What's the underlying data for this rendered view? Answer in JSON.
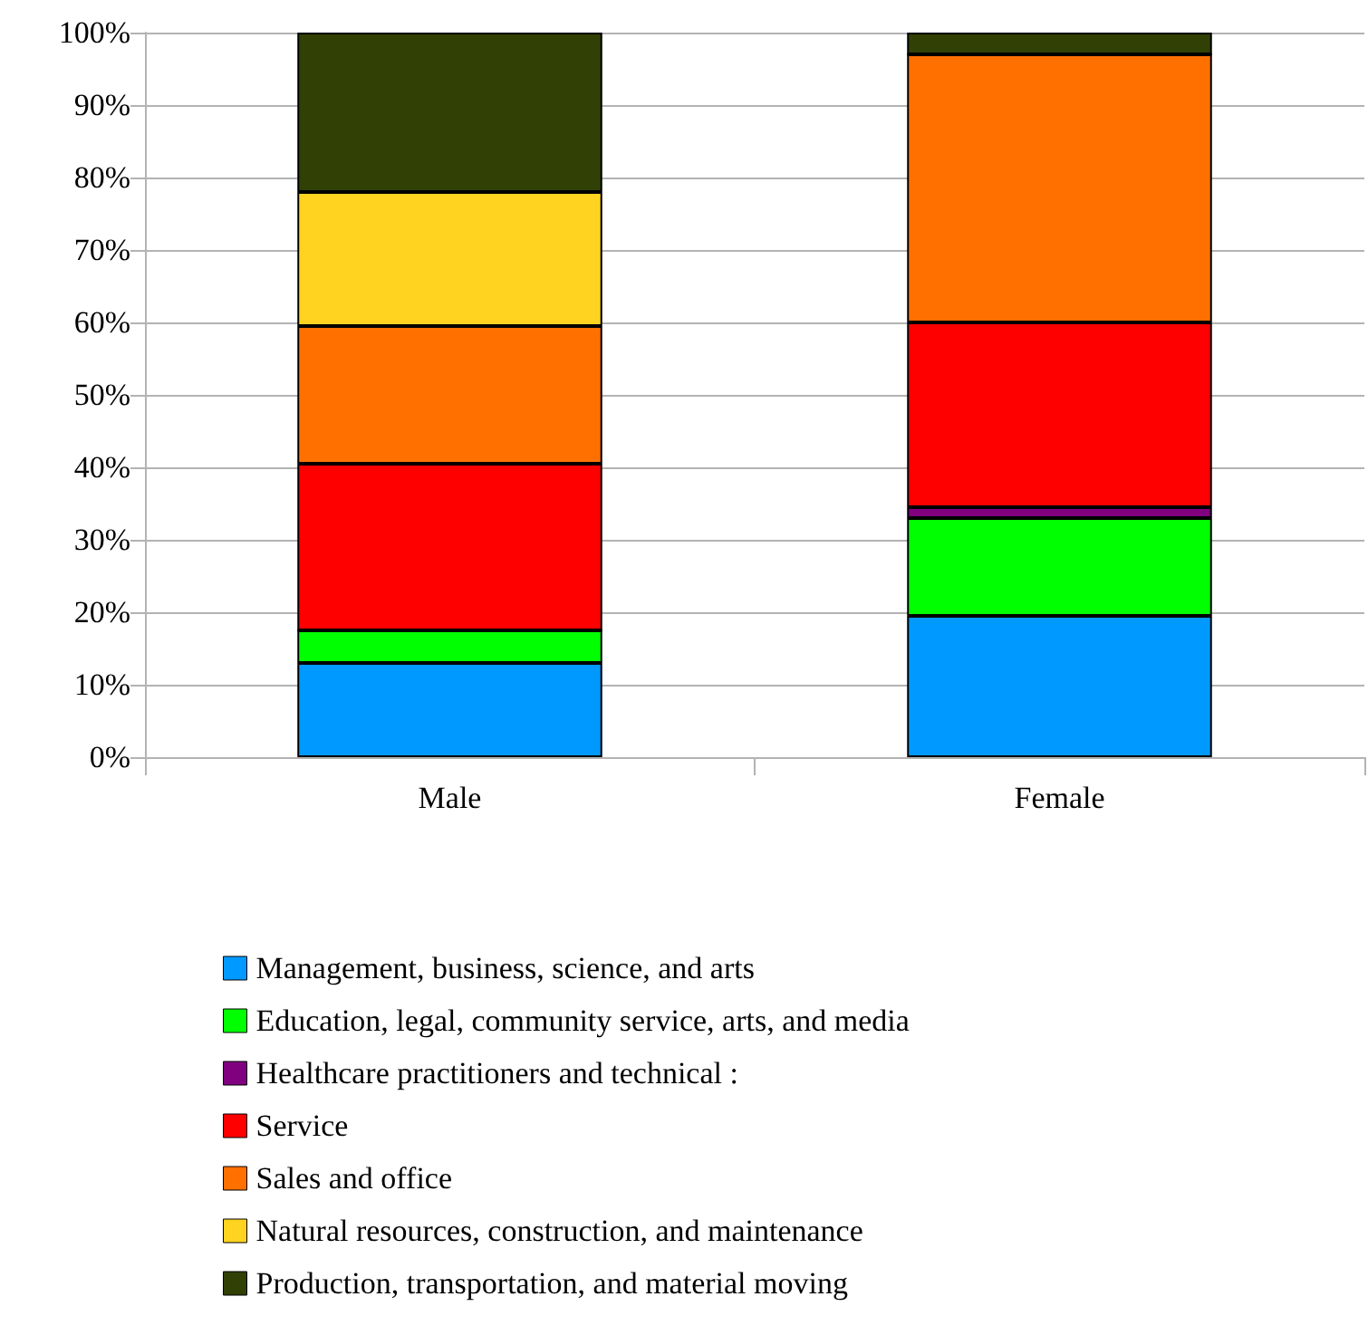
{
  "chart_data": {
    "type": "bar",
    "stacked": true,
    "categories": [
      "Male",
      "Female"
    ],
    "series": [
      {
        "name": "Management, business, science, and arts",
        "color": "#0099ff",
        "values": [
          13,
          19.5
        ]
      },
      {
        "name": "Education, legal, community service, arts, and media",
        "color": "#00ff00",
        "values": [
          4.5,
          13.5
        ]
      },
      {
        "name": "Healthcare practitioners and technical :",
        "color": "#800080",
        "values": [
          0,
          1.5
        ]
      },
      {
        "name": "Service",
        "color": "#ff0000",
        "values": [
          23,
          25.5
        ]
      },
      {
        "name": "Sales and office",
        "color": "#ff7000",
        "values": [
          19,
          37
        ]
      },
      {
        "name": "Natural resources, construction, and maintenance",
        "color": "#ffd320",
        "values": [
          18.5,
          0
        ]
      },
      {
        "name": "Production, transportation, and material moving",
        "color": "#314004",
        "values": [
          22,
          3
        ]
      }
    ],
    "ylim": [
      0,
      100
    ],
    "yticks": [
      {
        "value": 0,
        "label": "0%"
      },
      {
        "value": 10,
        "label": "10%"
      },
      {
        "value": 20,
        "label": "20%"
      },
      {
        "value": 30,
        "label": "30%"
      },
      {
        "value": 40,
        "label": "40%"
      },
      {
        "value": 50,
        "label": "50%"
      },
      {
        "value": 60,
        "label": "60%"
      },
      {
        "value": 70,
        "label": "70%"
      },
      {
        "value": 80,
        "label": "80%"
      },
      {
        "value": 90,
        "label": "90%"
      },
      {
        "value": 100,
        "label": "100%"
      }
    ],
    "grid": "y",
    "legend": "bottom"
  }
}
